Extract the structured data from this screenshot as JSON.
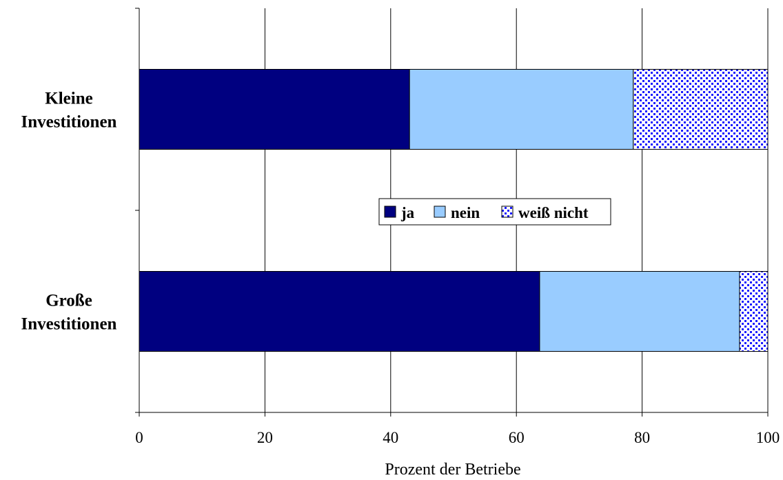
{
  "chart_data": {
    "type": "bar",
    "orientation": "horizontal",
    "stacked": true,
    "categories": [
      "Kleine Investitionen",
      "Große Investitionen"
    ],
    "category_lines": [
      [
        "Kleine",
        "Investitionen"
      ],
      [
        "Große",
        "Investitionen"
      ]
    ],
    "series": [
      {
        "name": "ja",
        "values": [
          43,
          63.7
        ]
      },
      {
        "name": "nein",
        "values": [
          35.6,
          31.8
        ]
      },
      {
        "name": "weiß nicht",
        "values": [
          21.4,
          4.5
        ]
      }
    ],
    "xlabel": "Prozent der Betriebe",
    "ylabel": "",
    "title": "",
    "xlim": [
      0,
      100
    ],
    "xticks": [
      "0",
      "20",
      "40",
      "60",
      "80",
      "100"
    ],
    "grid": "vertical",
    "legend_position": "center",
    "colors": {
      "ja": "#000080",
      "nein": "#99ccff",
      "weiß nicht": "#1a1aff",
      "weiß nicht background": "#ffffff",
      "axis": "#000000",
      "grid": "#000000"
    }
  }
}
